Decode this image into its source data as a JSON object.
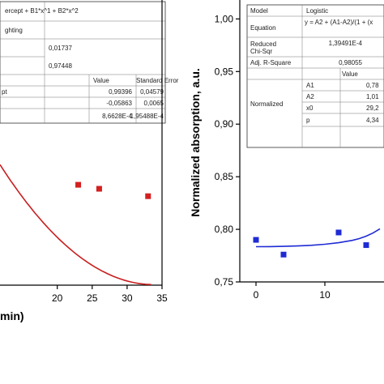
{
  "chart_data": [
    {
      "type": "scatter",
      "xlabel_visible": "min)",
      "ylabel": "",
      "xlim": [
        11.8,
        35
      ],
      "ylim": [
        0.0,
        1.0
      ],
      "x_ticks": [
        20,
        25,
        30,
        35
      ],
      "series": [
        {
          "color": "#d42020",
          "marker": "square",
          "x": [
            23,
            26,
            33
          ],
          "y": [
            0.352,
            0.338,
            0.312
          ]
        }
      ],
      "fit": {
        "color": "#c81e1e",
        "intercept": 0.99396,
        "b1": -0.05863,
        "b2": 0.00086628
      },
      "fit_table": {
        "rows": [
          [
            "",
            "ercept + B1*x^1 + B2*x^2"
          ],
          [
            "ghting",
            ""
          ],
          [
            "",
            "0,01737"
          ],
          [
            "",
            "0,97448"
          ]
        ],
        "header": [
          "",
          "Value",
          "Standard Error"
        ],
        "params": [
          [
            "pt",
            "0,99396",
            "0,04579"
          ],
          [
            "",
            "-0,05863",
            "0,0065"
          ],
          [
            "",
            "8,6628E-4",
            "1,95488E-4"
          ]
        ]
      }
    },
    {
      "type": "scatter",
      "ylabel": "Normalized absorption, a.u.",
      "ylim": [
        0.75,
        1.0
      ],
      "xlim": [
        -2.5,
        20
      ],
      "y_ticks": [
        "0,75",
        "0,80",
        "0,85",
        "0,90",
        "0,95",
        "1,00"
      ],
      "y_tick_values": [
        0.75,
        0.8,
        0.85,
        0.9,
        0.95,
        1.0
      ],
      "x_ticks": [
        0,
        10
      ],
      "series": [
        {
          "color": "#1f2bd4",
          "marker": "square",
          "x": [
            0,
            4,
            12,
            16
          ],
          "y": [
            0.79,
            0.776,
            0.797,
            0.785
          ]
        }
      ],
      "fit": {
        "color": "#1f2bd4",
        "x": [
          0,
          2,
          4,
          6,
          8,
          10,
          12,
          14,
          15,
          16,
          17,
          18,
          19,
          20
        ],
        "y": [
          0.7835,
          0.7836,
          0.7838,
          0.7842,
          0.7848,
          0.7858,
          0.7873,
          0.7895,
          0.7912,
          0.7935,
          0.7965,
          0.8005,
          0.8055,
          0.8115
        ]
      },
      "fit_table": {
        "rows": [
          [
            "Model",
            "Logistic"
          ],
          [
            "Equation",
            "y = A2 + (A1-A2)/(1 + (x"
          ],
          [
            "Reduced Chi-Sqr",
            "1,39491E-4"
          ],
          [
            "Adj. R-Square",
            "0,98055"
          ]
        ],
        "header": [
          "",
          "",
          "Value"
        ],
        "group": "Normalized",
        "params": [
          [
            "A1",
            "0,78"
          ],
          [
            "A2",
            "1,01"
          ],
          [
            "x0",
            "29,2"
          ],
          [
            "p",
            "4,34"
          ]
        ]
      }
    }
  ]
}
